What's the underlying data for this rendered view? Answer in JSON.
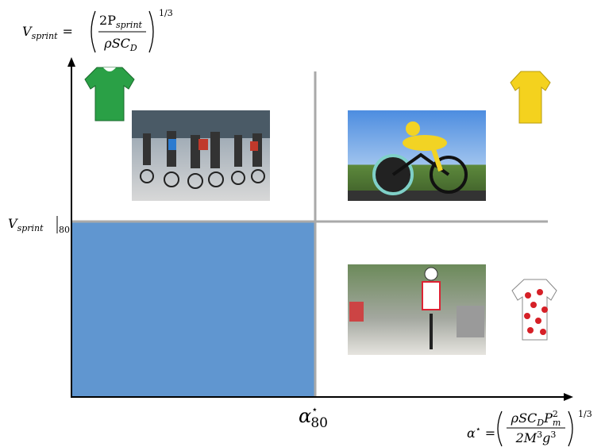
{
  "y_axis": {
    "label": {
      "var": "V",
      "sub": "sprint",
      "eq": "=",
      "num": "2P",
      "num_sub": "sprint",
      "den": "ρSC",
      "den_sub": "D",
      "exp": "1/3"
    },
    "threshold": {
      "var": "V",
      "sub": "sprint",
      "at": "80"
    }
  },
  "x_axis": {
    "label": {
      "var": "α",
      "sup": "⋆",
      "eq": "=",
      "num": "ρSC",
      "num_sub": "D",
      "num2": "P",
      "num2_sup": "2",
      "num2_sub": "m",
      "den": "2M",
      "den_sup": "3",
      "den2": "g",
      "den2_sup": "3",
      "exp": "1/3"
    },
    "threshold": {
      "var": "α",
      "sup": "⋆",
      "sub": "80"
    }
  }
}
